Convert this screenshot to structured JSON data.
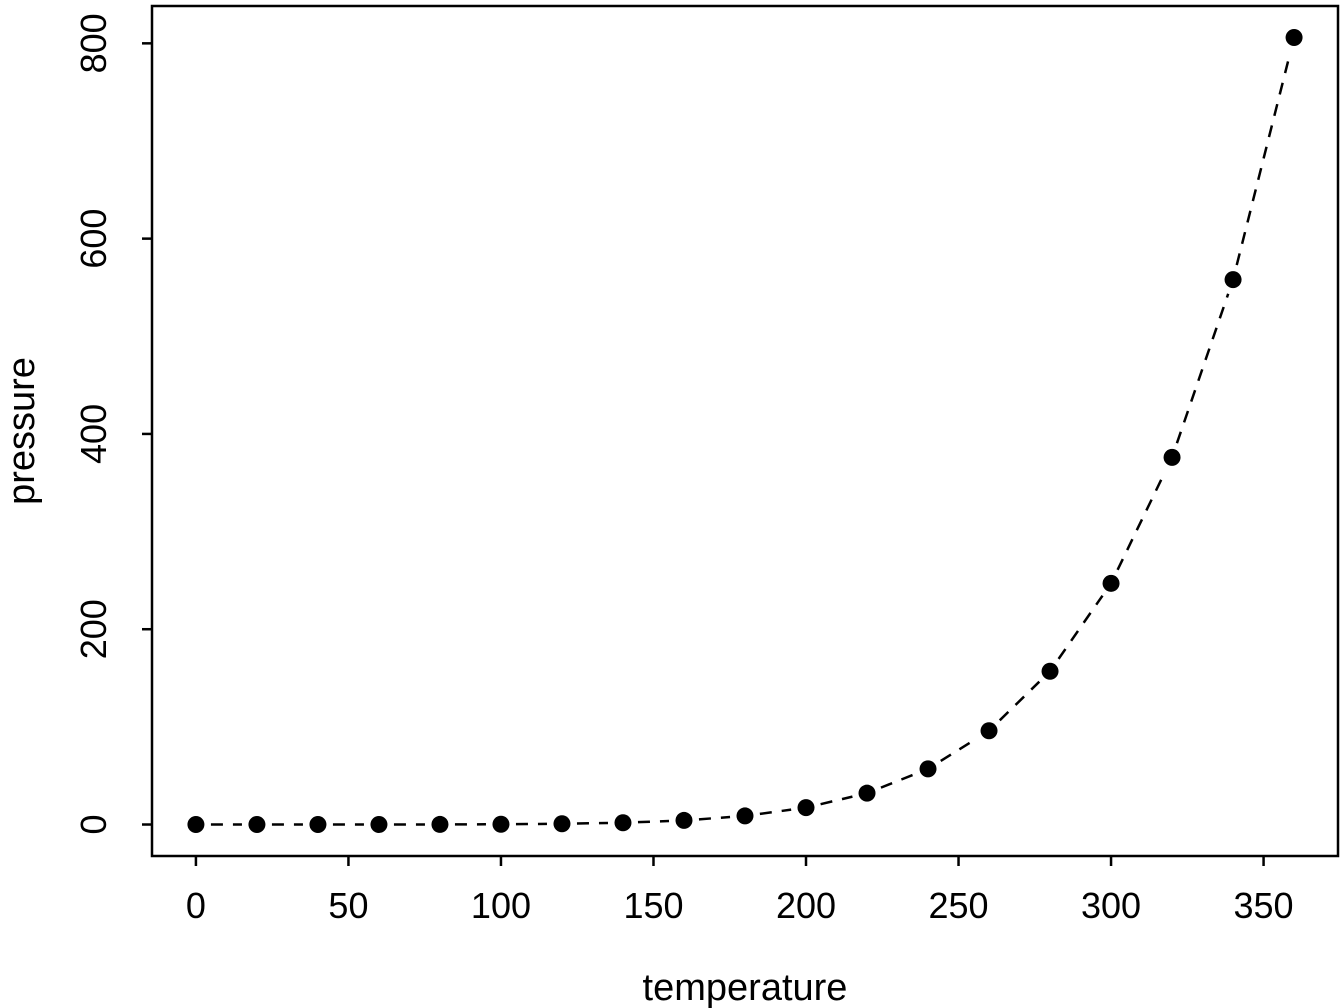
{
  "figure": {
    "background": "#ffffff",
    "foreground": "#000000"
  },
  "chart_data": {
    "type": "scatter",
    "title": "",
    "xlabel": "temperature",
    "ylabel": "pressure",
    "x": [
      0,
      20,
      40,
      60,
      80,
      100,
      120,
      140,
      160,
      180,
      200,
      220,
      240,
      260,
      280,
      300,
      320,
      340,
      360
    ],
    "y": [
      0.0002,
      0.0012,
      0.006,
      0.03,
      0.09,
      0.27,
      0.75,
      1.85,
      4.2,
      8.8,
      17.3,
      32.1,
      57,
      96,
      157,
      247,
      376,
      558,
      806
    ],
    "x_ticks": [
      0,
      50,
      100,
      150,
      200,
      250,
      300,
      350
    ],
    "y_ticks": [
      0,
      200,
      400,
      600,
      800
    ],
    "xlim": [
      0,
      360
    ],
    "ylim": [
      0,
      806
    ],
    "line_style": "dashed",
    "marker": "filled-circle",
    "color": "#000000",
    "grid": false,
    "legend": "none",
    "box": true
  }
}
